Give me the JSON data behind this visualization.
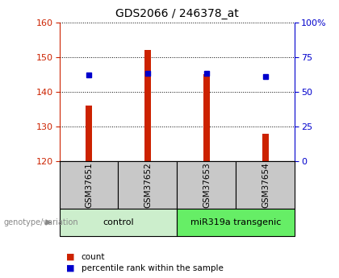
{
  "title": "GDS2066 / 246378_at",
  "samples": [
    "GSM37651",
    "GSM37652",
    "GSM37653",
    "GSM37654"
  ],
  "count_values": [
    136,
    152,
    145,
    128
  ],
  "percentile_values": [
    62,
    63,
    63,
    61
  ],
  "baseline": 120,
  "ylim_left": [
    120,
    160
  ],
  "ylim_right": [
    0,
    100
  ],
  "yticks_left": [
    120,
    130,
    140,
    150,
    160
  ],
  "yticks_right": [
    0,
    25,
    50,
    75,
    100
  ],
  "yticklabels_right": [
    "0",
    "25",
    "50",
    "75",
    "100%"
  ],
  "bar_color": "#cc2200",
  "dot_color": "#0000cc",
  "bar_width": 0.12,
  "groups": [
    {
      "label": "control",
      "indices": [
        0,
        1
      ],
      "color": "#cceecc"
    },
    {
      "label": "miR319a transgenic",
      "indices": [
        2,
        3
      ],
      "color": "#66ee66"
    }
  ],
  "genotype_label": "genotype/variation",
  "left_axis_color": "#cc2200",
  "right_axis_color": "#0000cc",
  "tick_area_bg": "#c8c8c8",
  "dot_size": 4
}
